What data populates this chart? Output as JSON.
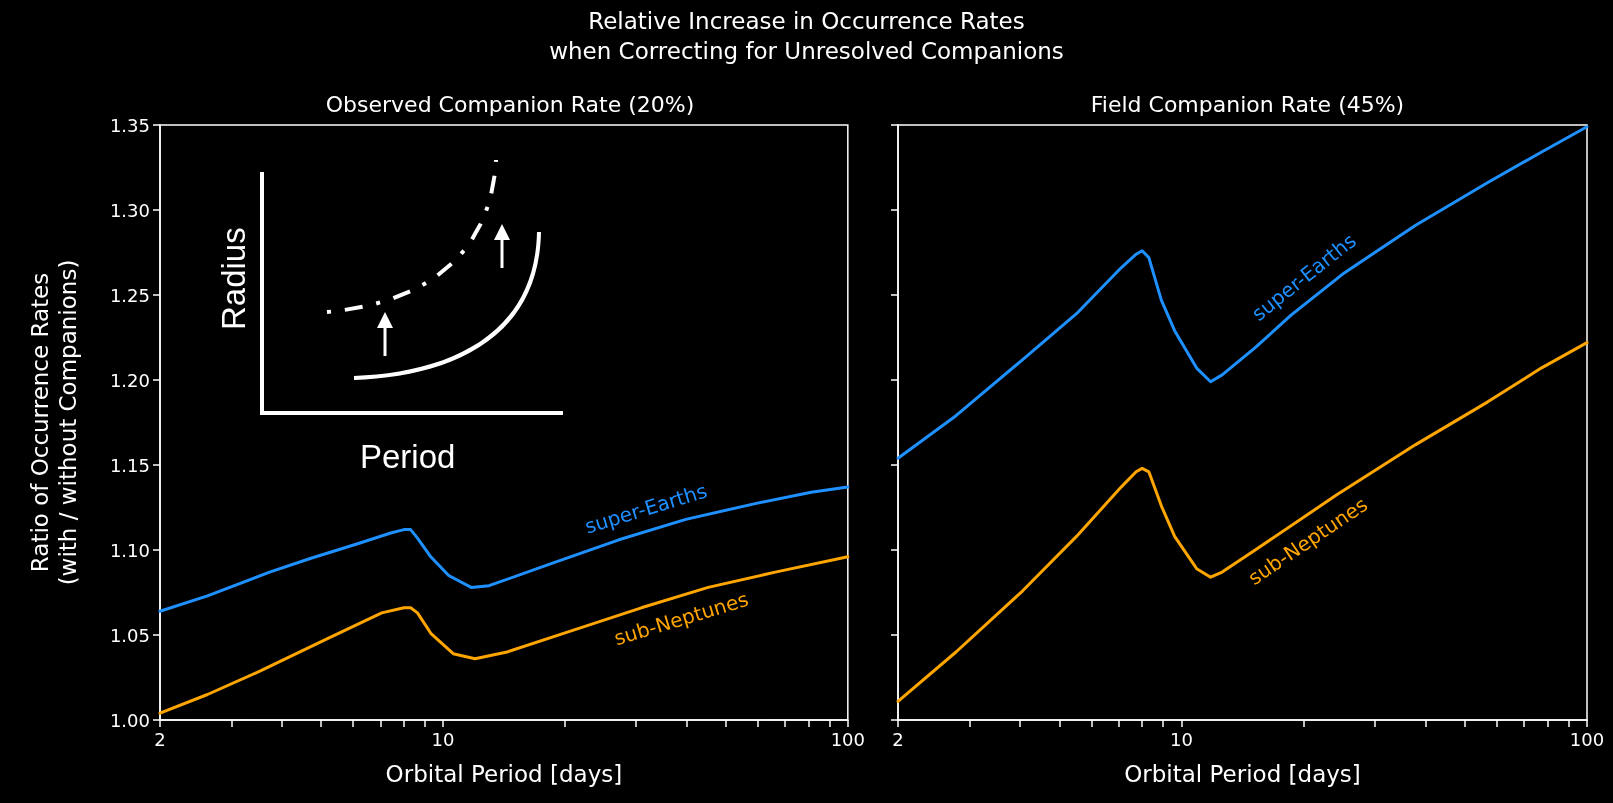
{
  "chart_data": [
    {
      "type": "line",
      "title": "Observed Companion Rate (20%)",
      "xlabel": "Orbital Period [days]",
      "ylabel": "Ratio of Occurrence Rates\n(with / without Companions)",
      "annotations": [
        "Relative Increase in Occurrence Rates\nwhen Correcting for Unresolved Companions",
        "Radius",
        "Period"
      ],
      "log": "x",
      "marker": "none",
      "xlim": [
        2,
        100
      ],
      "ylim": [
        1.0,
        1.35
      ],
      "xticks": [
        2,
        {
          "value": 3,
          "label": null
        },
        {
          "value": 4,
          "label": null
        },
        {
          "value": 5,
          "label": null
        },
        {
          "value": 6,
          "label": null
        },
        {
          "value": 7,
          "label": null
        },
        {
          "value": 8,
          "label": null
        },
        {
          "value": 9,
          "label": null
        },
        10,
        {
          "value": 20,
          "label": null
        },
        {
          "value": 30,
          "label": null
        },
        {
          "value": 40,
          "label": null
        },
        {
          "value": 50,
          "label": null
        },
        {
          "value": 60,
          "label": null
        },
        {
          "value": 70,
          "label": null
        },
        {
          "value": 80,
          "label": null
        },
        {
          "value": 90,
          "label": null
        },
        100
      ],
      "yticks": [
        {
          "value": 1.0,
          "label": "1.00"
        },
        {
          "value": 1.05,
          "label": "1.05"
        },
        {
          "value": 1.1,
          "label": "1.10"
        },
        {
          "value": 1.15,
          "label": "1.15"
        },
        {
          "value": 1.2,
          "label": "1.20"
        },
        {
          "value": 1.25,
          "label": "1.25"
        },
        {
          "value": 1.3,
          "label": "1.30"
        },
        {
          "value": 1.35,
          "label": "1.35"
        }
      ],
      "series": [
        {
          "name": "super-Earths",
          "color": "#1e90ff",
          "x": [
            2,
            2.62,
            3.73,
            4.7,
            6.21,
            7.43,
            8.01,
            8.32,
            8.65,
            9.33,
            10.33,
            11.74,
            13.0,
            18.5,
            27.2,
            39.8,
            58.3,
            81.2,
            100
          ],
          "values": [
            1.064,
            1.073,
            1.087,
            1.095,
            1.104,
            1.11,
            1.112,
            1.112,
            1.107,
            1.096,
            1.085,
            1.078,
            1.079,
            1.092,
            1.106,
            1.118,
            1.127,
            1.134,
            1.137
          ]
        },
        {
          "name": "sub-Neptunes",
          "color": "#ffa500",
          "x": [
            2,
            2.62,
            3.55,
            5.2,
            7.06,
            8.01,
            8.32,
            8.65,
            9.33,
            10.6,
            12.0,
            14.4,
            21.1,
            30.9,
            45.2,
            66.2,
            100
          ],
          "values": [
            1.004,
            1.015,
            1.029,
            1.048,
            1.063,
            1.066,
            1.066,
            1.063,
            1.051,
            1.039,
            1.036,
            1.04,
            1.053,
            1.066,
            1.078,
            1.087,
            1.096
          ]
        }
      ]
    },
    {
      "type": "line",
      "title": "Field Companion Rate (45%)",
      "xlabel": "Orbital Period [days]",
      "log": "x",
      "marker": "none",
      "tick_labels": "x",
      "xlim": [
        2,
        100
      ],
      "ylim": [
        1.0,
        1.35
      ],
      "xticks": [
        2,
        {
          "value": 3,
          "label": null
        },
        {
          "value": 4,
          "label": null
        },
        {
          "value": 5,
          "label": null
        },
        {
          "value": 6,
          "label": null
        },
        {
          "value": 7,
          "label": null
        },
        {
          "value": 8,
          "label": null
        },
        {
          "value": 9,
          "label": null
        },
        10,
        {
          "value": 20,
          "label": null
        },
        {
          "value": 30,
          "label": null
        },
        {
          "value": 40,
          "label": null
        },
        {
          "value": 50,
          "label": null
        },
        {
          "value": 60,
          "label": null
        },
        {
          "value": 70,
          "label": null
        },
        {
          "value": 80,
          "label": null
        },
        {
          "value": 90,
          "label": null
        },
        100
      ],
      "yticks": [
        1.0,
        1.05,
        1.1,
        1.15,
        1.2,
        1.25,
        1.3,
        1.35
      ],
      "series": [
        {
          "name": "super-Earths",
          "color": "#1e90ff",
          "x": [
            2,
            2.78,
            4.06,
            5.51,
            7.1,
            7.73,
            8.0,
            8.31,
            8.92,
            9.62,
            10.9,
            11.8,
            12.6,
            15.2,
            18.6,
            25.2,
            37.8,
            56.8,
            77.1,
            100
          ],
          "values": [
            1.154,
            1.179,
            1.212,
            1.239,
            1.266,
            1.274,
            1.276,
            1.272,
            1.247,
            1.229,
            1.207,
            1.199,
            1.203,
            1.219,
            1.238,
            1.263,
            1.291,
            1.316,
            1.334,
            1.349
          ]
        },
        {
          "name": "sub-Neptunes",
          "color": "#ffa500",
          "x": [
            2,
            2.78,
            4.06,
            5.51,
            7.1,
            7.73,
            8.0,
            8.31,
            8.92,
            9.62,
            10.9,
            11.8,
            12.6,
            15.2,
            24.0,
            37.8,
            56.8,
            77.1,
            100
          ],
          "values": [
            1.011,
            1.04,
            1.076,
            1.108,
            1.137,
            1.146,
            1.148,
            1.146,
            1.126,
            1.108,
            1.089,
            1.084,
            1.087,
            1.1,
            1.132,
            1.162,
            1.187,
            1.207,
            1.222
          ]
        }
      ]
    }
  ]
}
